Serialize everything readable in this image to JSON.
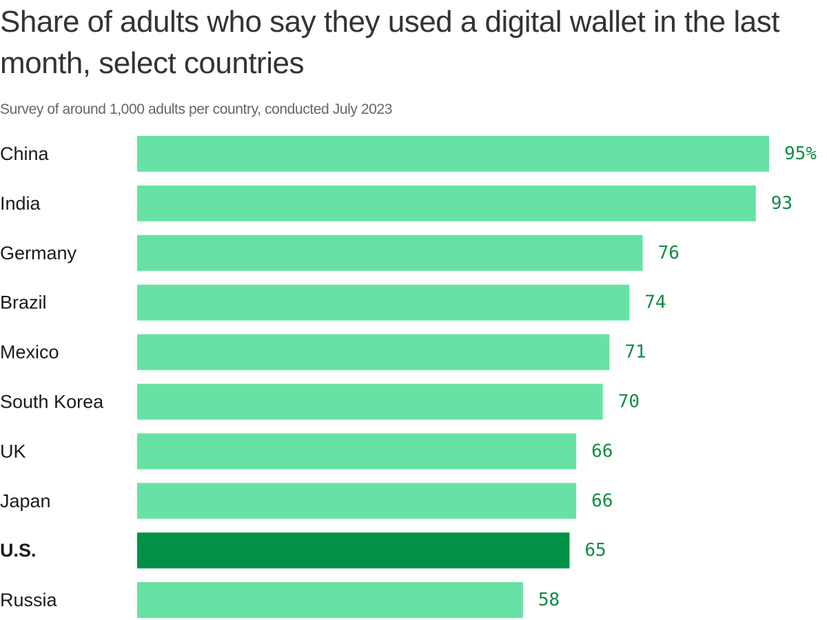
{
  "title": "Share of adults who say they used a digital wallet in the last month, select countries",
  "subtitle": "Survey of around 1,000 adults per country, conducted July 2023",
  "colors": {
    "bar": "#68e2a4",
    "bar_highlight": "#009147",
    "value_label": "#0e8c45",
    "text": "#333333"
  },
  "chart_data": {
    "type": "bar",
    "orientation": "horizontal",
    "title": "Share of adults who say they used a digital wallet in the last month, select countries",
    "subtitle": "Survey of around 1,000 adults per country, conducted July 2023",
    "categories": [
      "China",
      "India",
      "Germany",
      "Brazil",
      "Mexico",
      "South Korea",
      "UK",
      "Japan",
      "U.S.",
      "Russia"
    ],
    "values": [
      95,
      93,
      76,
      74,
      71,
      70,
      66,
      66,
      65,
      58
    ],
    "value_labels": [
      "95%",
      "93",
      "76",
      "74",
      "71",
      "70",
      "66",
      "66",
      "65",
      "58"
    ],
    "highlight": "U.S.",
    "unit": "%",
    "xlim": [
      0,
      95
    ],
    "grid": false,
    "legend": "none"
  }
}
